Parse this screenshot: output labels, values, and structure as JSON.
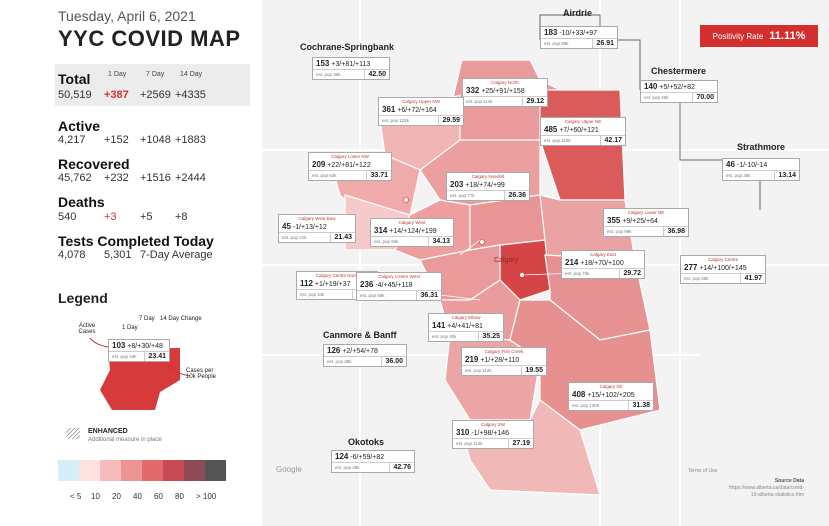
{
  "header": {
    "date": "Tuesday, April 6, 2021",
    "title": "YYC COVID MAP"
  },
  "stats": {
    "col_headers": [
      "1 Day",
      "7 Day",
      "14 Day"
    ],
    "total": {
      "label": "Total",
      "value": "50,519",
      "d1": "+387",
      "d7": "+2569",
      "d14": "+4335"
    },
    "active": {
      "label": "Active",
      "value": "4,217",
      "d1": "+152",
      "d7": "+1048",
      "d14": "+1883"
    },
    "recovered": {
      "label": "Recovered",
      "value": "45,762",
      "d1": "+232",
      "d7": "+1516",
      "d14": "+2444"
    },
    "deaths": {
      "label": "Deaths",
      "value": "540",
      "d1": "+3",
      "d7": "+5",
      "d14": "+8"
    },
    "tests": {
      "label": "Tests Completed Today",
      "value": "4,078",
      "avg": "5,301",
      "avg_label": "7-Day Average"
    }
  },
  "legend": {
    "title": "Legend",
    "seven_day": "7 Day",
    "fourteen_day": "14 Day Change",
    "one_day": "1 Day",
    "active_cases": "Active Cases",
    "cases_per": "Cases per 10k People",
    "example_top": "103",
    "example_change": "+8/+30/+48",
    "example_pop": "est. pop 44k",
    "example_rate": "23.41",
    "enhanced": "ENHANCED",
    "enhanced_note": "Additional measure in place",
    "scale": [
      "< 5",
      "10",
      "20",
      "40",
      "60",
      "80",
      "> 100"
    ],
    "scale_colors": [
      "#d6eef8",
      "#fde2e2",
      "#f6bcbc",
      "#ee9393",
      "#e26a6a",
      "#c94a55",
      "#8e4a55",
      "#555555"
    ]
  },
  "positivity": {
    "label": "Positivity Rate",
    "value": "11.11%"
  },
  "regions": {
    "airdrie": "Airdrie",
    "cochrane": "Cochrane-Springbank",
    "chestermere": "Chestermere",
    "strathmore": "Strathmore",
    "canmore": "Canmore & Banff",
    "okotoks": "Okotoks"
  },
  "badges": {
    "airdrie": {
      "name": "",
      "cases": "183",
      "change": "-10/+33/+97",
      "pop": "est. pop 68k",
      "rate": "26.91"
    },
    "cochrane": {
      "name": "",
      "cases": "153",
      "change": "+3/+81/+113",
      "pop": "est. pop 36k",
      "rate": "42.50"
    },
    "north": {
      "name": "Calgary North",
      "cases": "332",
      "change": "+25/+91/+158",
      "pop": "est. pop 114k",
      "rate": "29.12"
    },
    "chestermere": {
      "name": "",
      "cases": "140",
      "change": "+5/+52/+82",
      "pop": "est. pop 20k",
      "rate": "70.00"
    },
    "uppernw": {
      "name": "Calgary Upper NW",
      "cases": "361",
      "change": "+6/+72/+164",
      "pop": "est. pop 122k",
      "rate": "29.59"
    },
    "upperne": {
      "name": "Calgary Upper NE",
      "cases": "485",
      "change": "+7/+60/+121",
      "pop": "est. pop 115k",
      "rate": "42.17"
    },
    "strathmore": {
      "name": "",
      "cases": "46",
      "change": "-1/-10/-14",
      "pop": "est. pop 35k",
      "rate": "13.14"
    },
    "lowernw": {
      "name": "Calgary Lower NW",
      "cases": "209",
      "change": "+22/+81/+122",
      "pop": "est. pop 62k",
      "rate": "33.71"
    },
    "nosehill": {
      "name": "Calgary Nosehill",
      "cases": "203",
      "change": "+18/+74/+99",
      "pop": "est. pop 77k",
      "rate": "26.36"
    },
    "westbow": {
      "name": "Calgary West Bow",
      "cases": "45",
      "change": "-1/+13/+12",
      "pop": "est. pop 21k",
      "rate": "21.43"
    },
    "west": {
      "name": "Calgary West",
      "cases": "314",
      "change": "+14/+124/+199",
      "pop": "est. pop 92k",
      "rate": "34.13"
    },
    "lowerne": {
      "name": "Calgary Lower NE",
      "cases": "355",
      "change": "+9/+25/+64",
      "pop": "est. pop 96k",
      "rate": "36.98"
    },
    "centre": {
      "name": "Calgary Centre",
      "cases": "277",
      "change": "+14/+100/+145",
      "pop": "est. pop 66k",
      "rate": "41.97"
    },
    "centrenorth": {
      "name": "Calgary Centre North",
      "cases": "112",
      "change": "+1/+19/+37",
      "pop": "est. pop 44k",
      "rate": "25.45"
    },
    "centrewest": {
      "name": "Calgary Centre West",
      "cases": "236",
      "change": "-4/+45/+118",
      "pop": "est. pop 65k",
      "rate": "36.31"
    },
    "east": {
      "name": "Calgary East",
      "cases": "214",
      "change": "+18/+70/+100",
      "pop": "est. pop 72k",
      "rate": "29.72"
    },
    "elbow": {
      "name": "Calgary Elbow",
      "cases": "141",
      "change": "+4/+41/+81",
      "pop": "est. pop 40k",
      "rate": "35.25"
    },
    "canmore": {
      "name": "",
      "cases": "126",
      "change": "+2/+54/+78",
      "pop": "est. pop 35k",
      "rate": "36.00"
    },
    "fishcreek": {
      "name": "Calgary Fish Creek",
      "cases": "219",
      "change": "+1/+28/+110",
      "pop": "est. pop 112k",
      "rate": "19.55"
    },
    "se": {
      "name": "Calgary SE",
      "cases": "408",
      "change": "+15/+102/+205",
      "pop": "est. pop 130k",
      "rate": "31.38"
    },
    "sw": {
      "name": "Calgary SW",
      "cases": "310",
      "change": "-1/+98/+146",
      "pop": "est. pop 114k",
      "rate": "27.19"
    },
    "okotoks": {
      "name": "",
      "cases": "124",
      "change": "-6/+59/+82",
      "pop": "est. pop 29k",
      "rate": "42.76"
    }
  },
  "map_labels": {
    "calgary": "Calgary",
    "google": "Google",
    "terms": "Terms of Use"
  },
  "source": {
    "title": "Source Data",
    "url": "https://www.alberta.ca/data/covid-19-alberta-statistics.htm"
  }
}
